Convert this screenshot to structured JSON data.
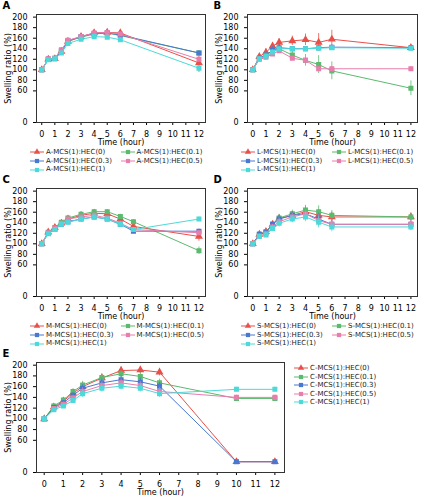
{
  "chart_data": [
    {
      "type": "line",
      "title": "A",
      "xlabel": "Time (hour)",
      "ylabel": "Swelling ratio (%)",
      "x": [
        0,
        0.5,
        1,
        1.5,
        2,
        3,
        4,
        5,
        6,
        12
      ],
      "xlim": [
        -0.4,
        12.5
      ],
      "xticks": [
        0,
        1,
        2,
        3,
        4,
        5,
        6,
        7,
        8,
        9,
        10,
        11,
        12
      ],
      "ylim": [
        0,
        205
      ],
      "yticks": [
        0,
        60,
        80,
        100,
        120,
        140,
        160,
        180,
        200
      ],
      "grid": false,
      "legend": "bottom",
      "series": [
        {
          "name": "A-MCS(1):HEC(0)",
          "color": "#e8504a",
          "marker": "triangle",
          "values": [
            100,
            120,
            121,
            135,
            154,
            163,
            170,
            171,
            170,
            113
          ],
          "errors": [
            0,
            2,
            3,
            4,
            4,
            5,
            5,
            6,
            4,
            18
          ]
        },
        {
          "name": "A-MCS(1):HEC(0.1)",
          "color": "#5bba6f",
          "marker": "square",
          "values": [
            100,
            120,
            122,
            136,
            154,
            162,
            168,
            170,
            165,
            132
          ],
          "errors": [
            0,
            2,
            3,
            4,
            4,
            4,
            4,
            5,
            4,
            4
          ]
        },
        {
          "name": "A-MCS(1):HEC(0.3)",
          "color": "#4878cf",
          "marker": "square",
          "values": [
            100,
            120,
            121,
            135,
            155,
            163,
            169,
            170,
            166,
            132
          ],
          "errors": [
            0,
            2,
            3,
            4,
            4,
            4,
            4,
            5,
            4,
            4
          ]
        },
        {
          "name": "A-MCS(1):HEC(0.5)",
          "color": "#e87eac",
          "marker": "square",
          "values": [
            100,
            121,
            122,
            138,
            156,
            163,
            170,
            171,
            168,
            120
          ],
          "errors": [
            0,
            2,
            3,
            4,
            4,
            4,
            4,
            5,
            4,
            4
          ]
        },
        {
          "name": "A-MCS(1):HEC(1)",
          "color": "#4dd9d9",
          "marker": "square",
          "values": [
            100,
            119,
            121,
            132,
            150,
            158,
            163,
            162,
            157,
            103
          ],
          "errors": [
            0,
            2,
            3,
            4,
            4,
            4,
            4,
            5,
            4,
            4
          ]
        }
      ]
    },
    {
      "type": "line",
      "title": "B",
      "xlabel": "Time (hour)",
      "ylabel": "Swelling ratio (%)",
      "x": [
        0,
        0.5,
        1,
        1.5,
        2,
        3,
        4,
        5,
        6,
        12
      ],
      "xlim": [
        -0.4,
        12.5
      ],
      "xticks": [
        0,
        1,
        2,
        3,
        4,
        5,
        6,
        7,
        8,
        9,
        10,
        11,
        12
      ],
      "ylim": [
        0,
        205
      ],
      "yticks": [
        0,
        60,
        80,
        100,
        120,
        140,
        160,
        180,
        200
      ],
      "grid": false,
      "legend": "bottom",
      "series": [
        {
          "name": "L-MCS(1):HEC(0)",
          "color": "#e8504a",
          "marker": "triangle",
          "values": [
            100,
            125,
            133,
            145,
            152,
            155,
            157,
            152,
            158,
            142
          ],
          "errors": [
            0,
            4,
            7,
            7,
            7,
            9,
            11,
            17,
            17,
            4
          ]
        },
        {
          "name": "L-MCS(1):HEC(0.1)",
          "color": "#5bba6f",
          "marker": "square",
          "values": [
            100,
            122,
            128,
            136,
            140,
            128,
            118,
            110,
            98,
            65
          ],
          "errors": [
            0,
            4,
            7,
            7,
            7,
            9,
            11,
            17,
            17,
            14
          ]
        },
        {
          "name": "L-MCS(1):HEC(0.3)",
          "color": "#4878cf",
          "marker": "square",
          "values": [
            100,
            122,
            128,
            137,
            142,
            140,
            140,
            142,
            143,
            142
          ],
          "errors": [
            0,
            4,
            7,
            7,
            7,
            4,
            4,
            4,
            4,
            4
          ]
        },
        {
          "name": "L-MCS(1):HEC(0.5)",
          "color": "#e87eac",
          "marker": "square",
          "values": [
            100,
            120,
            124,
            130,
            136,
            122,
            118,
            102,
            102,
            102
          ],
          "errors": [
            0,
            4,
            4,
            4,
            4,
            4,
            4,
            4,
            4,
            4
          ]
        },
        {
          "name": "L-MCS(1):HEC(1)",
          "color": "#4dd9d9",
          "marker": "square",
          "values": [
            100,
            121,
            126,
            134,
            140,
            140,
            140,
            141,
            142,
            141
          ],
          "errors": [
            0,
            4,
            4,
            4,
            4,
            4,
            4,
            4,
            4,
            4
          ]
        }
      ]
    },
    {
      "type": "line",
      "title": "C",
      "xlabel": "Time (hour)",
      "ylabel": "Swelling ratio (%)",
      "x": [
        0,
        0.5,
        1,
        1.5,
        2,
        3,
        4,
        5,
        6,
        7,
        12
      ],
      "xlim": [
        -0.4,
        12.5
      ],
      "xticks": [
        0,
        1,
        2,
        3,
        4,
        5,
        6,
        7,
        8,
        9,
        10,
        11,
        12
      ],
      "ylim": [
        0,
        205
      ],
      "yticks": [
        0,
        60,
        80,
        100,
        120,
        140,
        160,
        180,
        200
      ],
      "grid": false,
      "legend": "bottom",
      "series": [
        {
          "name": "M-MCS(1):HEC(0)",
          "color": "#e8504a",
          "marker": "triangle",
          "values": [
            100,
            122,
            131,
            139,
            147,
            154,
            158,
            157,
            147,
            133,
            114
          ],
          "errors": [
            0,
            3,
            4,
            4,
            4,
            4,
            4,
            6,
            4,
            4,
            9
          ]
        },
        {
          "name": "M-MCS(1):HEC(0.1)",
          "color": "#5bba6f",
          "marker": "square",
          "values": [
            100,
            122,
            131,
            141,
            149,
            156,
            161,
            161,
            152,
            142,
            87
          ],
          "errors": [
            0,
            3,
            4,
            4,
            4,
            4,
            4,
            4,
            4,
            4,
            7
          ]
        },
        {
          "name": "M-MCS(1):HEC(0.3)",
          "color": "#4878cf",
          "marker": "square",
          "values": [
            100,
            120,
            127,
            137,
            142,
            147,
            151,
            147,
            137,
            124,
            124
          ],
          "errors": [
            0,
            3,
            4,
            4,
            4,
            4,
            4,
            4,
            4,
            4,
            4
          ]
        },
        {
          "name": "M-MCS(1):HEC(0.5)",
          "color": "#e87eac",
          "marker": "square",
          "values": [
            100,
            121,
            129,
            139,
            147,
            151,
            154,
            149,
            139,
            127,
            121
          ],
          "errors": [
            0,
            3,
            4,
            4,
            4,
            4,
            4,
            4,
            4,
            4,
            4
          ]
        },
        {
          "name": "M-MCS(1):HEC(1)",
          "color": "#4dd9d9",
          "marker": "square",
          "values": [
            100,
            119,
            127,
            137,
            141,
            147,
            151,
            147,
            137,
            127,
            147
          ],
          "errors": [
            0,
            3,
            4,
            4,
            4,
            4,
            4,
            4,
            4,
            4,
            4
          ]
        }
      ]
    },
    {
      "type": "line",
      "title": "D",
      "xlabel": "Time (hour)",
      "ylabel": "Swelling ratio (%)",
      "x": [
        0,
        0.5,
        1,
        1.5,
        2,
        3,
        4,
        5,
        6,
        12
      ],
      "xlim": [
        -0.4,
        12.5
      ],
      "xticks": [
        0,
        1,
        2,
        3,
        4,
        5,
        6,
        7,
        8,
        9,
        10,
        11,
        12
      ],
      "ylim": [
        0,
        205
      ],
      "yticks": [
        0,
        60,
        80,
        100,
        120,
        140,
        160,
        180,
        200
      ],
      "grid": false,
      "legend": "bottom",
      "series": [
        {
          "name": "S-MCS(1):HEC(0)",
          "color": "#e8504a",
          "marker": "triangle",
          "values": [
            100,
            118,
            123,
            137,
            148,
            154,
            161,
            154,
            151,
            151
          ],
          "errors": [
            0,
            4,
            5,
            5,
            7,
            7,
            9,
            11,
            9,
            7
          ]
        },
        {
          "name": "S-MCS(1):HEC(0.1)",
          "color": "#5bba6f",
          "marker": "square",
          "values": [
            100,
            118,
            123,
            137,
            149,
            157,
            164,
            161,
            154,
            151
          ],
          "errors": [
            0,
            4,
            5,
            5,
            7,
            7,
            9,
            11,
            9,
            7
          ]
        },
        {
          "name": "S-MCS(1):HEC(0.3)",
          "color": "#4878cf",
          "marker": "square",
          "values": [
            100,
            118,
            122,
            137,
            147,
            154,
            157,
            147,
            137,
            137
          ],
          "errors": [
            0,
            4,
            5,
            5,
            7,
            7,
            9,
            11,
            9,
            7
          ]
        },
        {
          "name": "S-MCS(1):HEC(0.5)",
          "color": "#e87eac",
          "marker": "square",
          "values": [
            100,
            115,
            119,
            132,
            142,
            151,
            157,
            144,
            137,
            137
          ],
          "errors": [
            0,
            4,
            5,
            5,
            7,
            7,
            9,
            11,
            9,
            7
          ]
        },
        {
          "name": "S-MCS(1):HEC(1)",
          "color": "#4dd9d9",
          "marker": "square",
          "values": [
            100,
            114,
            117,
            129,
            139,
            147,
            151,
            141,
            132,
            132
          ],
          "errors": [
            0,
            4,
            5,
            5,
            7,
            7,
            9,
            11,
            9,
            7
          ]
        }
      ]
    },
    {
      "type": "line",
      "title": "E",
      "xlabel": "Time (hour)",
      "ylabel": "Swelling ratio (%)",
      "x": [
        0,
        0.5,
        1,
        1.5,
        2,
        3,
        4,
        5,
        6,
        10,
        12
      ],
      "xlim": [
        -0.4,
        12.5
      ],
      "xticks": [
        0,
        1,
        2,
        3,
        4,
        5,
        6,
        7,
        8,
        9,
        10,
        11,
        12
      ],
      "ylim": [
        0,
        205
      ],
      "yticks": [
        0,
        60,
        80,
        100,
        120,
        140,
        160,
        180,
        200
      ],
      "grid": false,
      "legend": "right",
      "series": [
        {
          "name": "C-MCS(1):HEC(0)",
          "color": "#e8504a",
          "marker": "triangle",
          "values": [
            100,
            122,
            133,
            148,
            160,
            176,
            190,
            191,
            187,
            20,
            20
          ],
          "errors": [
            0,
            3,
            4,
            5,
            7,
            7,
            7,
            7,
            7,
            3,
            3
          ]
        },
        {
          "name": "C-MCS(1):HEC(0.1)",
          "color": "#5bba6f",
          "marker": "square",
          "values": [
            100,
            124,
            135,
            151,
            163,
            177,
            184,
            179,
            167,
            138,
            138
          ],
          "errors": [
            0,
            3,
            4,
            5,
            7,
            7,
            7,
            7,
            7,
            4,
            4
          ]
        },
        {
          "name": "C-MCS(1):HEC(0.3)",
          "color": "#4878cf",
          "marker": "square",
          "values": [
            100,
            121,
            130,
            144,
            157,
            167,
            173,
            169,
            161,
            20,
            20
          ],
          "errors": [
            0,
            3,
            4,
            5,
            7,
            7,
            7,
            7,
            7,
            3,
            3
          ]
        },
        {
          "name": "C-MCS(1):HEC(0.5)",
          "color": "#e87eac",
          "marker": "square",
          "values": [
            100,
            119,
            127,
            139,
            151,
            162,
            167,
            162,
            151,
            140,
            140
          ],
          "errors": [
            0,
            3,
            4,
            5,
            7,
            7,
            7,
            7,
            7,
            4,
            4
          ]
        },
        {
          "name": "C-MCS(1):HEC(1)",
          "color": "#4dd9d9",
          "marker": "square",
          "values": [
            100,
            117,
            124,
            134,
            147,
            157,
            161,
            157,
            147,
            155,
            155
          ],
          "errors": [
            0,
            3,
            4,
            5,
            7,
            7,
            7,
            7,
            7,
            4,
            4
          ]
        }
      ]
    }
  ]
}
